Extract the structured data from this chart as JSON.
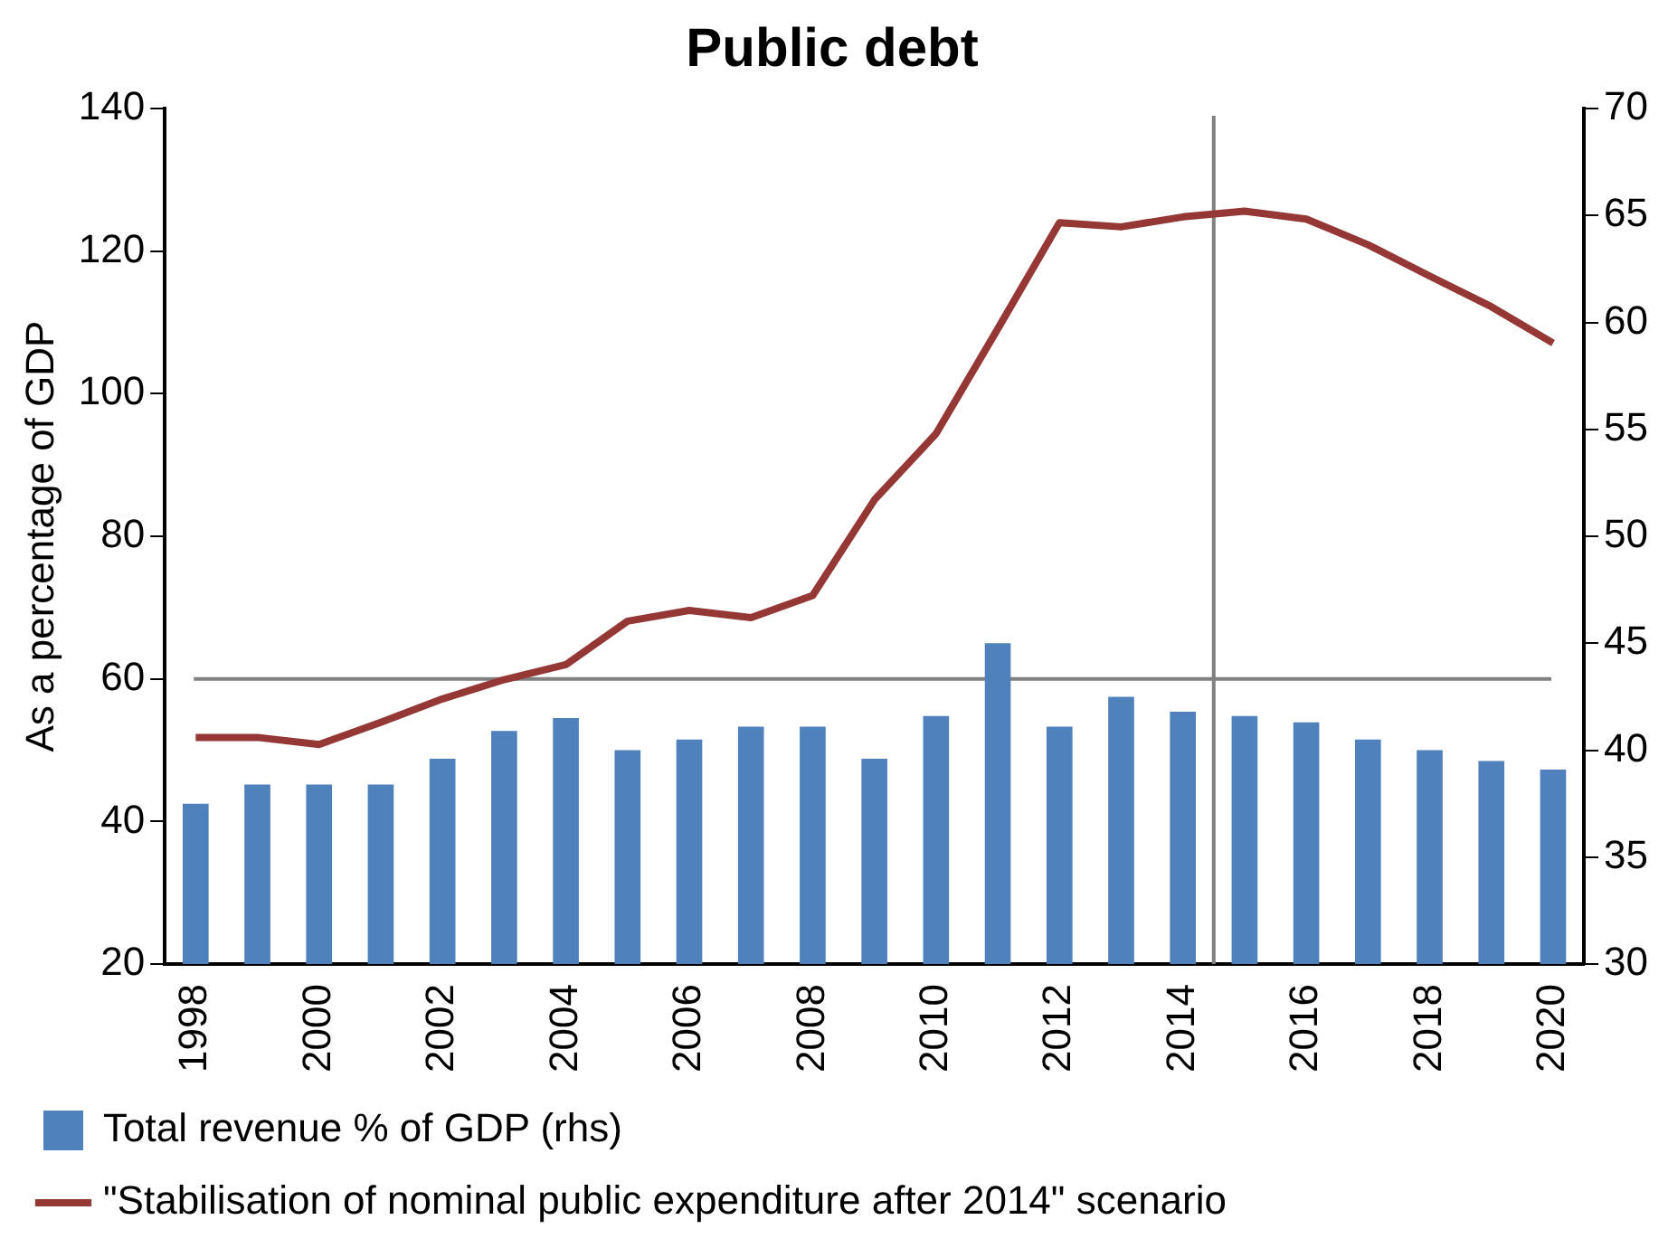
{
  "chart_data": {
    "type": "bar",
    "title": "Public debt",
    "ylabel": "As a percentage of GDP",
    "x": [
      1998,
      1999,
      2000,
      2001,
      2002,
      2003,
      2004,
      2005,
      2006,
      2007,
      2008,
      2009,
      2010,
      2011,
      2012,
      2013,
      2014,
      2015,
      2016,
      2017,
      2018,
      2019,
      2020
    ],
    "xlim": [
      1997.5,
      2020.5
    ],
    "xticks": [
      1998,
      2000,
      2002,
      2004,
      2006,
      2008,
      2010,
      2012,
      2014,
      2016,
      2018,
      2020
    ],
    "series": [
      {
        "name": "Total revenue % of GDP (rhs)",
        "axis": "y2",
        "color": "#4f81bd",
        "values": [
          37.5,
          38.4,
          38.4,
          38.4,
          39.6,
          40.9,
          41.5,
          40.0,
          40.5,
          41.1,
          41.1,
          39.6,
          41.6,
          45.0,
          41.1,
          42.5,
          41.8,
          41.6,
          41.3,
          40.5,
          40.0,
          39.5,
          39.1
        ]
      },
      {
        "name": "\"Stabilisation of nominal public expenditure after 2014\" scenario",
        "type": "line",
        "color": "#953735",
        "values": [
          51.8,
          51.8,
          50.8,
          53.9,
          57.2,
          59.9,
          62.0,
          68.1,
          69.6,
          68.6,
          71.7,
          85.1,
          94.4,
          109.1,
          124.0,
          123.4,
          124.8,
          125.6,
          124.5,
          120.9,
          116.5,
          112.2,
          107.1
        ]
      }
    ],
    "ylim": [
      20,
      140
    ],
    "yticks": [
      20,
      40,
      60,
      80,
      100,
      120,
      140
    ],
    "y2lim": [
      30,
      70
    ],
    "y2ticks": [
      30,
      35,
      40,
      45,
      50,
      55,
      60,
      65,
      70
    ],
    "ref_lines": [
      {
        "axis": "y",
        "value": 60,
        "color": "#808080"
      },
      {
        "axis": "x",
        "value": 2014.5,
        "color": "#808080"
      }
    ],
    "grid": false,
    "legend": "bottom",
    "marker": "none"
  }
}
